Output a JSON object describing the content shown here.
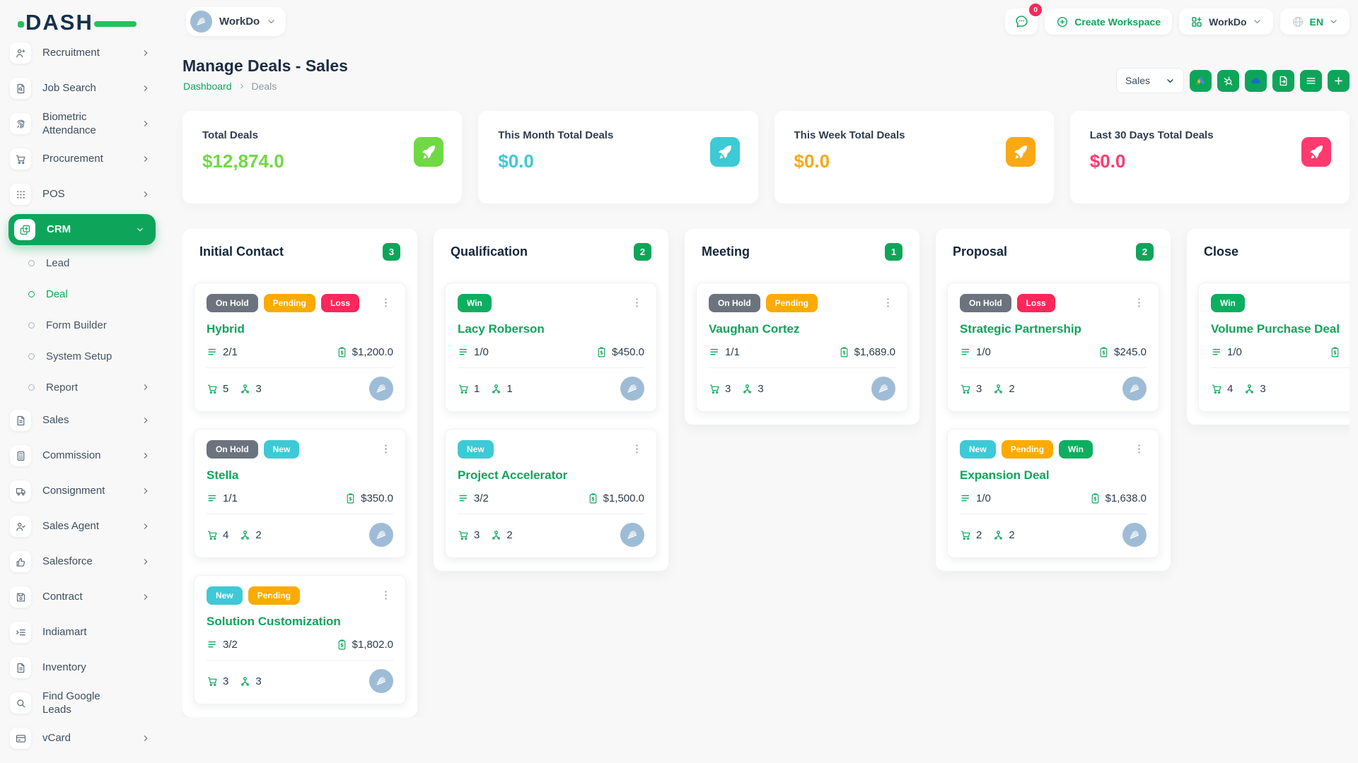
{
  "brand": {
    "logo_text": "DASH"
  },
  "theme": {
    "accent": "#0ea55a",
    "lime": "#6fd943",
    "teal": "#3ec9d6",
    "orange": "#f9a916",
    "pink": "#ff3a6e"
  },
  "topbar": {
    "workspace_switcher": {
      "label": "WorkDo"
    },
    "messages_badge": "0",
    "create_workspace": "Create Workspace",
    "app_menu_label": "WorkDo",
    "language": "EN"
  },
  "sidebar": {
    "items": [
      {
        "label": "Recruitment",
        "icon": "user-plus-icon",
        "chevron": "right"
      },
      {
        "label": "Job Search",
        "icon": "doc-search-icon",
        "chevron": "right"
      },
      {
        "label": "Biometric Attendance",
        "icon": "fingerprint-icon",
        "chevron": "right"
      },
      {
        "label": "Procurement",
        "icon": "cart-icon",
        "chevron": "right"
      },
      {
        "label": "POS",
        "icon": "grid-dots-icon",
        "chevron": "right"
      },
      {
        "label": "CRM",
        "icon": "copy-plus-icon",
        "chevron": "down",
        "active": true
      },
      {
        "label": "Lead",
        "type": "sub"
      },
      {
        "label": "Deal",
        "type": "sub",
        "active": true
      },
      {
        "label": "Form Builder",
        "type": "sub"
      },
      {
        "label": "System Setup",
        "type": "sub"
      },
      {
        "label": "Report",
        "type": "sub",
        "chevron": "right"
      },
      {
        "label": "Sales",
        "icon": "file-icon",
        "chevron": "right"
      },
      {
        "label": "Commission",
        "icon": "calculator-icon",
        "chevron": "right"
      },
      {
        "label": "Consignment",
        "icon": "truck-icon",
        "chevron": "right"
      },
      {
        "label": "Sales Agent",
        "icon": "user-check-icon",
        "chevron": "right"
      },
      {
        "label": "Salesforce",
        "icon": "thumbs-up-icon",
        "chevron": "right"
      },
      {
        "label": "Contract",
        "icon": "save-icon",
        "chevron": "right"
      },
      {
        "label": "Indiamart",
        "icon": "list-arrow-icon"
      },
      {
        "label": "Inventory",
        "icon": "file-icon"
      },
      {
        "label": "Find Google Leads",
        "icon": "search-icon"
      },
      {
        "label": "vCard",
        "icon": "card-icon",
        "chevron": "right"
      }
    ]
  },
  "page": {
    "title": "Manage Deals - Sales",
    "breadcrumb": [
      "Dashboard",
      "Deals"
    ],
    "pipeline_select_value": "Sales",
    "toolbar_buttons": [
      "google-ads",
      "hubspot",
      "onedrive",
      "export",
      "list",
      "plus"
    ]
  },
  "stats": [
    {
      "label": "Total Deals",
      "value": "$12,874.0",
      "color": "#6fd943"
    },
    {
      "label": "This Month Total Deals",
      "value": "$0.0",
      "color": "#3ec9d6"
    },
    {
      "label": "This Week Total Deals",
      "value": "$0.0",
      "color": "#f9a916"
    },
    {
      "label": "Last 30 Days Total Deals",
      "value": "$0.0",
      "color": "#ff3a6e"
    }
  ],
  "label_colors": {
    "On Hold": "#6b747e",
    "Pending": "#fbab00",
    "Loss": "#fc275a",
    "New": "#3ec9d6",
    "Win": "#0caf60"
  },
  "board": {
    "columns": [
      {
        "name": "Initial Contact",
        "count": "3",
        "cards": [
          {
            "labels": [
              "On Hold",
              "Pending",
              "Loss"
            ],
            "title": "Hybrid",
            "tasks": "2/1",
            "amount": "$1,200.0",
            "products": "5",
            "users": "3"
          },
          {
            "labels": [
              "On Hold",
              "New"
            ],
            "title": "Stella",
            "tasks": "1/1",
            "amount": "$350.0",
            "products": "4",
            "users": "2"
          },
          {
            "labels": [
              "New",
              "Pending"
            ],
            "title": "Solution Customization",
            "tasks": "3/2",
            "amount": "$1,802.0",
            "products": "3",
            "users": "3"
          }
        ]
      },
      {
        "name": "Qualification",
        "count": "2",
        "cards": [
          {
            "labels": [
              "Win"
            ],
            "title": "Lacy Roberson",
            "tasks": "1/0",
            "amount": "$450.0",
            "products": "1",
            "users": "1"
          },
          {
            "labels": [
              "New"
            ],
            "title": "Project Accelerator",
            "tasks": "3/2",
            "amount": "$1,500.0",
            "products": "3",
            "users": "2"
          }
        ]
      },
      {
        "name": "Meeting",
        "count": "1",
        "cards": [
          {
            "labels": [
              "On Hold",
              "Pending"
            ],
            "title": "Vaughan Cortez",
            "tasks": "1/1",
            "amount": "$1,689.0",
            "products": "3",
            "users": "3"
          }
        ]
      },
      {
        "name": "Proposal",
        "count": "2",
        "cards": [
          {
            "labels": [
              "On Hold",
              "Loss"
            ],
            "title": "Strategic Partnership",
            "tasks": "1/0",
            "amount": "$245.0",
            "products": "3",
            "users": "2"
          },
          {
            "labels": [
              "New",
              "Pending",
              "Win"
            ],
            "title": "Expansion Deal",
            "tasks": "1/0",
            "amount": "$1,638.0",
            "products": "2",
            "users": "2"
          }
        ]
      },
      {
        "name": "Close",
        "count": "",
        "cards": [
          {
            "labels": [
              "Win"
            ],
            "title": "Volume Purchase Deal",
            "tasks": "1/0",
            "amount": "",
            "products": "4",
            "users": "3"
          }
        ]
      }
    ]
  }
}
